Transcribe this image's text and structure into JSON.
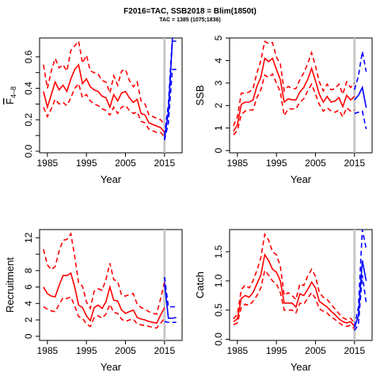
{
  "title": "F2016=TAC, SSB2018 = Blim(1850t)",
  "subtitle": "TAC = 1385 (1075;1836)",
  "colors": {
    "historic": "#ff0000",
    "forecast": "#0000ff",
    "marker": "#c8c8c8",
    "axis": "#000000"
  },
  "chart_data": [
    {
      "type": "line",
      "panel": "top-left",
      "xlabel": "Year",
      "ylabel": "F4-8",
      "ylabel_main": "F",
      "ylabel_sub": "4–8",
      "xlim": [
        1983,
        2019.5
      ],
      "ylim": [
        -0.01,
        0.72
      ],
      "xticks": [
        1985,
        1995,
        2005,
        2015
      ],
      "yticks": [
        0.0,
        0.2,
        0.4,
        0.6
      ],
      "ytick_labels": [
        "0.0",
        "0.2",
        "0.4",
        "0.6"
      ],
      "ytick_minor": [
        0.1,
        0.3,
        0.5
      ],
      "vline": 2015,
      "historic": {
        "x": [
          1984,
          1985,
          1986,
          1987,
          1988,
          1989,
          1990,
          1991,
          1992,
          1993,
          1994,
          1995,
          1996,
          1997,
          1998,
          1999,
          2000,
          2001,
          2002,
          2003,
          2004,
          2005,
          2006,
          2007,
          2008,
          2009,
          2010,
          2011,
          2012,
          2013,
          2014,
          2015
        ],
        "y": [
          0.38,
          0.28,
          0.36,
          0.44,
          0.39,
          0.42,
          0.38,
          0.46,
          0.52,
          0.55,
          0.43,
          0.46,
          0.41,
          0.39,
          0.38,
          0.35,
          0.34,
          0.28,
          0.36,
          0.32,
          0.37,
          0.38,
          0.34,
          0.31,
          0.33,
          0.24,
          0.23,
          0.18,
          0.17,
          0.16,
          0.15,
          0.12
        ],
        "upper": [
          0.55,
          0.4,
          0.51,
          0.59,
          0.53,
          0.55,
          0.51,
          0.64,
          0.67,
          0.7,
          0.56,
          0.61,
          0.51,
          0.5,
          0.49,
          0.45,
          0.44,
          0.37,
          0.48,
          0.42,
          0.51,
          0.52,
          0.45,
          0.41,
          0.44,
          0.32,
          0.3,
          0.23,
          0.22,
          0.21,
          0.2,
          0.17
        ],
        "lower": [
          0.28,
          0.22,
          0.27,
          0.33,
          0.3,
          0.31,
          0.29,
          0.34,
          0.4,
          0.43,
          0.34,
          0.36,
          0.32,
          0.3,
          0.29,
          0.27,
          0.26,
          0.23,
          0.28,
          0.24,
          0.28,
          0.29,
          0.26,
          0.24,
          0.25,
          0.19,
          0.18,
          0.14,
          0.13,
          0.12,
          0.12,
          0.09
        ]
      },
      "forecast": {
        "x": [
          2015,
          2016,
          2017,
          2018
        ],
        "y": [
          0.08,
          0.25,
          0.7,
          0.7
        ],
        "upper": [
          0.1,
          0.3,
          0.72,
          0.72
        ],
        "lower": [
          0.07,
          0.18,
          0.52,
          0.52
        ]
      }
    },
    {
      "type": "line",
      "panel": "top-right",
      "xlabel": "Year",
      "ylabel": "SSB",
      "xlim": [
        1983,
        2019.5
      ],
      "ylim": [
        -0.1,
        5.0
      ],
      "xticks": [
        1985,
        1995,
        2005,
        2015
      ],
      "yticks": [
        0,
        1,
        2,
        3,
        4,
        5
      ],
      "ytick_labels": [
        "0",
        "1",
        "2",
        "3",
        "4",
        "5"
      ],
      "vline": 2015,
      "historic": {
        "x": [
          1984,
          1985,
          1986,
          1987,
          1988,
          1989,
          1990,
          1991,
          1992,
          1993,
          1994,
          1995,
          1996,
          1997,
          1998,
          1999,
          2000,
          2001,
          2002,
          2003,
          2004,
          2005,
          2006,
          2007,
          2008,
          2009,
          2010,
          2011,
          2012,
          2013,
          2014,
          2015
        ],
        "y": [
          0.85,
          1.15,
          2.05,
          2.15,
          2.15,
          2.25,
          2.85,
          3.25,
          4.1,
          3.95,
          4.1,
          3.6,
          3.15,
          2.15,
          2.3,
          2.25,
          2.25,
          2.6,
          2.8,
          3.15,
          3.65,
          3.1,
          2.5,
          2.15,
          2.4,
          2.15,
          2.2,
          2.35,
          1.95,
          2.45,
          2.25,
          2.4
        ],
        "upper": [
          1.1,
          1.5,
          2.55,
          2.55,
          2.6,
          2.75,
          3.45,
          4.0,
          4.85,
          4.75,
          4.8,
          4.15,
          3.85,
          2.65,
          2.85,
          2.75,
          2.75,
          3.15,
          3.45,
          3.85,
          4.35,
          3.75,
          3.05,
          2.65,
          2.95,
          2.7,
          2.75,
          2.95,
          2.5,
          3.05,
          2.8,
          3.0
        ],
        "lower": [
          0.7,
          0.9,
          1.6,
          1.75,
          1.8,
          1.8,
          2.35,
          2.7,
          3.35,
          3.25,
          3.4,
          3.0,
          2.6,
          1.55,
          1.85,
          1.85,
          1.85,
          2.15,
          2.3,
          2.65,
          2.95,
          2.5,
          2.05,
          1.75,
          1.9,
          1.75,
          1.7,
          1.8,
          1.5,
          1.9,
          1.75,
          1.8
        ]
      },
      "forecast": {
        "x": [
          2015,
          2016,
          2017,
          2018
        ],
        "y": [
          2.25,
          2.45,
          2.8,
          1.9
        ],
        "upper": [
          2.7,
          3.3,
          4.4,
          3.5
        ],
        "lower": [
          1.65,
          1.7,
          1.75,
          0.95
        ]
      }
    },
    {
      "type": "line",
      "panel": "bottom-left",
      "xlabel": "Year",
      "ylabel": "Recruitment",
      "xlim": [
        1983,
        2019.5
      ],
      "ylim": [
        -0.5,
        13.0
      ],
      "xticks": [
        1985,
        1995,
        2005,
        2015
      ],
      "yticks": [
        0,
        2,
        4,
        6,
        8,
        12
      ],
      "ytick_labels": [
        "0",
        "2",
        "4",
        "6",
        "8",
        "12"
      ],
      "ytick_minor": [
        10
      ],
      "vline": 2015,
      "historic": {
        "x": [
          1984,
          1985,
          1986,
          1987,
          1988,
          1989,
          1990,
          1991,
          1992,
          1993,
          1994,
          1995,
          1996,
          1997,
          1998,
          1999,
          2000,
          2001,
          2002,
          2003,
          2004,
          2005,
          2006,
          2007,
          2008,
          2009,
          2010,
          2011,
          2012,
          2013,
          2014,
          2015
        ],
        "y": [
          6.0,
          5.2,
          4.9,
          4.8,
          6.2,
          7.4,
          7.4,
          7.7,
          6.0,
          3.8,
          3.5,
          2.5,
          1.9,
          3.5,
          3.8,
          3.4,
          4.2,
          6.0,
          4.4,
          4.3,
          3.2,
          2.8,
          3.0,
          3.2,
          2.3,
          2.1,
          2.0,
          1.8,
          1.7,
          1.6,
          2.6,
          3.5
        ],
        "upper": [
          10.6,
          8.7,
          8.1,
          8.5,
          10.4,
          11.7,
          11.8,
          12.5,
          9.7,
          6.5,
          6.1,
          4.2,
          3.4,
          5.5,
          5.8,
          5.6,
          6.9,
          8.9,
          6.9,
          6.7,
          5.0,
          4.9,
          5.1,
          5.2,
          3.9,
          3.5,
          3.3,
          3.0,
          2.8,
          2.7,
          4.6,
          6.6
        ],
        "lower": [
          3.6,
          3.3,
          3.1,
          3.0,
          3.9,
          4.7,
          4.6,
          4.8,
          3.7,
          2.4,
          2.2,
          1.5,
          1.2,
          2.3,
          2.5,
          2.2,
          2.7,
          3.9,
          2.9,
          2.8,
          2.1,
          1.8,
          2.0,
          2.1,
          1.5,
          1.4,
          1.3,
          1.2,
          1.1,
          1.0,
          1.6,
          2.2
        ]
      },
      "forecast": {
        "x": [
          2015,
          2016,
          2017,
          2018
        ],
        "y": [
          6.5,
          2.2,
          2.2,
          2.3
        ],
        "upper": [
          7.2,
          3.6,
          3.6,
          3.6
        ],
        "lower": [
          1.8,
          1.7,
          1.7,
          1.7
        ]
      }
    },
    {
      "type": "line",
      "panel": "bottom-right",
      "xlabel": "Year",
      "ylabel": "Catch",
      "xlim": [
        1983,
        2019.5
      ],
      "ylim": [
        -0.02,
        1.88
      ],
      "xticks": [
        1985,
        1995,
        2005,
        2015
      ],
      "yticks": [
        0.0,
        0.5,
        1.0,
        1.5
      ],
      "ytick_labels": [
        "0.0",
        "0.5",
        "1.0",
        "1.5"
      ],
      "vline": 2015,
      "historic": {
        "x": [
          1984,
          1985,
          1986,
          1987,
          1988,
          1989,
          1990,
          1991,
          1992,
          1993,
          1994,
          1995,
          1996,
          1997,
          1998,
          1999,
          2000,
          2001,
          2002,
          2003,
          2004,
          2005,
          2006,
          2007,
          2008,
          2009,
          2010,
          2011,
          2012,
          2013,
          2014,
          2015
        ],
        "y": [
          0.3,
          0.35,
          0.7,
          0.75,
          0.72,
          0.8,
          0.95,
          1.1,
          1.45,
          1.35,
          1.2,
          1.15,
          1.0,
          0.62,
          0.62,
          0.62,
          0.55,
          0.78,
          0.75,
          0.85,
          0.98,
          0.88,
          0.65,
          0.6,
          0.55,
          0.48,
          0.42,
          0.35,
          0.3,
          0.28,
          0.3,
          0.22
        ],
        "upper": [
          0.35,
          0.43,
          0.85,
          0.93,
          0.88,
          1.0,
          1.18,
          1.4,
          1.8,
          1.7,
          1.5,
          1.45,
          1.25,
          0.75,
          0.8,
          0.75,
          0.68,
          0.95,
          0.92,
          1.08,
          1.2,
          1.08,
          0.8,
          0.72,
          0.68,
          0.6,
          0.52,
          0.44,
          0.37,
          0.34,
          0.36,
          0.27
        ],
        "lower": [
          0.25,
          0.28,
          0.55,
          0.6,
          0.58,
          0.65,
          0.75,
          0.88,
          1.18,
          1.1,
          1.0,
          0.95,
          0.8,
          0.5,
          0.5,
          0.5,
          0.45,
          0.62,
          0.6,
          0.7,
          0.8,
          0.7,
          0.52,
          0.48,
          0.45,
          0.38,
          0.34,
          0.28,
          0.24,
          0.22,
          0.24,
          0.18
        ]
      },
      "forecast": {
        "x": [
          2015,
          2016,
          2017,
          2018
        ],
        "y": [
          0.2,
          0.4,
          1.35,
          1.0
        ],
        "upper": [
          0.22,
          0.55,
          1.88,
          1.55
        ],
        "lower": [
          0.15,
          0.25,
          1.1,
          0.62
        ]
      }
    }
  ]
}
